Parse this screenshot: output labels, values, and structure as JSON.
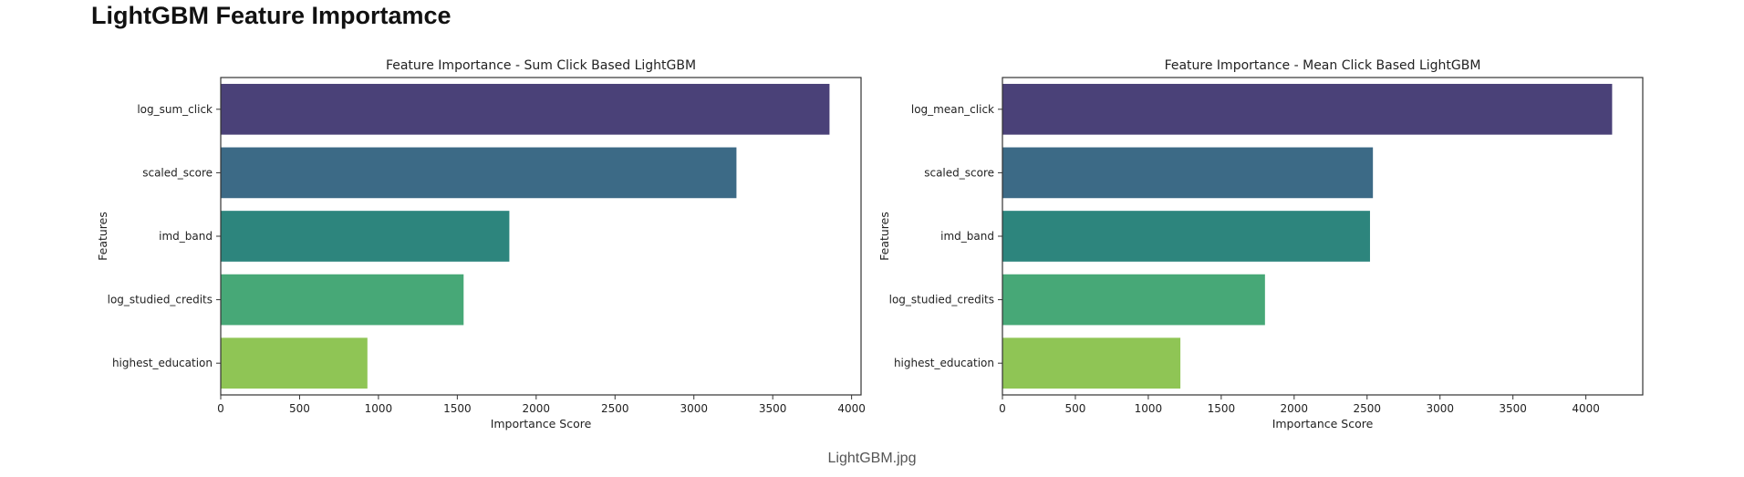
{
  "page": {
    "heading": "LightGBM Feature Importamce",
    "caption": "LightGBM.jpg"
  },
  "chart_data": [
    {
      "type": "bar",
      "orientation": "horizontal",
      "title": "Feature Importance - Sum Click Based LightGBM",
      "xlabel": "Importance Score",
      "ylabel": "Features",
      "categories": [
        "log_sum_click",
        "scaled_score",
        "imd_band",
        "log_studied_credits",
        "highest_education"
      ],
      "values": [
        3860,
        3270,
        1830,
        1540,
        930
      ],
      "colors": [
        "#4a4178",
        "#3c6a86",
        "#2d857d",
        "#47a877",
        "#8fc555"
      ],
      "xlim": [
        0,
        4060
      ],
      "xticks": [
        "0",
        "500",
        "1000",
        "1500",
        "2000",
        "2500",
        "3000",
        "3500",
        "4000"
      ],
      "grid": false
    },
    {
      "type": "bar",
      "orientation": "horizontal",
      "title": "Feature Importance - Mean Click Based LightGBM",
      "xlabel": "Importance Score",
      "ylabel": "Features",
      "categories": [
        "log_mean_click",
        "scaled_score",
        "imd_band",
        "log_studied_credits",
        "highest_education"
      ],
      "values": [
        4180,
        2540,
        2520,
        1800,
        1220
      ],
      "colors": [
        "#4a4178",
        "#3c6a86",
        "#2d857d",
        "#47a877",
        "#8fc555"
      ],
      "xlim": [
        0,
        4390
      ],
      "xticks": [
        "0",
        "500",
        "1000",
        "1500",
        "2000",
        "2500",
        "3000",
        "3500",
        "4000"
      ],
      "grid": false
    }
  ]
}
